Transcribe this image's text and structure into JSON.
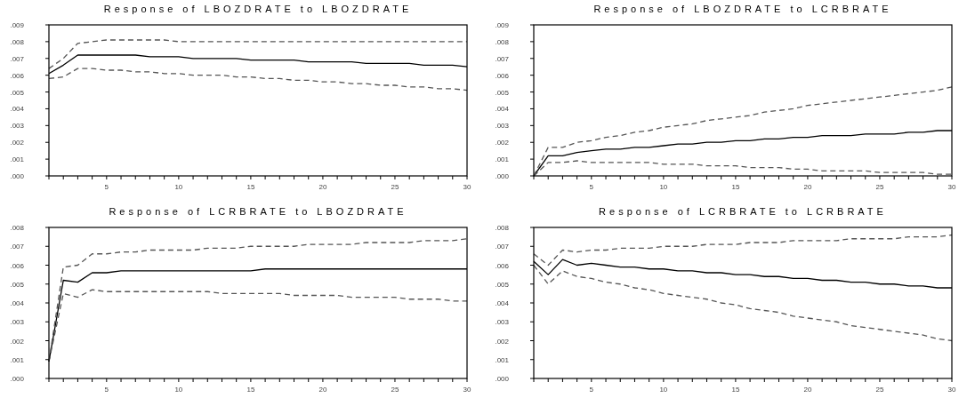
{
  "chart_data": [
    {
      "type": "line",
      "title": "Response of LBOZDRATE to LBOZDRATE",
      "x": [
        1,
        2,
        3,
        4,
        5,
        6,
        7,
        8,
        9,
        10,
        11,
        12,
        13,
        14,
        15,
        16,
        17,
        18,
        19,
        20,
        21,
        22,
        23,
        24,
        25,
        26,
        27,
        28,
        29,
        30
      ],
      "xlim": [
        1,
        30
      ],
      "xticks": [
        {
          "value": 1,
          "label": null
        },
        {
          "value": 2,
          "label": null
        },
        {
          "value": 3,
          "label": null
        },
        {
          "value": 4,
          "label": null
        },
        5,
        {
          "value": 6,
          "label": null
        },
        {
          "value": 7,
          "label": null
        },
        {
          "value": 8,
          "label": null
        },
        {
          "value": 9,
          "label": null
        },
        10,
        {
          "value": 11,
          "label": null
        },
        {
          "value": 12,
          "label": null
        },
        {
          "value": 13,
          "label": null
        },
        {
          "value": 14,
          "label": null
        },
        15,
        {
          "value": 16,
          "label": null
        },
        {
          "value": 17,
          "label": null
        },
        {
          "value": 18,
          "label": null
        },
        {
          "value": 19,
          "label": null
        },
        20,
        {
          "value": 21,
          "label": null
        },
        {
          "value": 22,
          "label": null
        },
        {
          "value": 23,
          "label": null
        },
        {
          "value": 24,
          "label": null
        },
        25,
        {
          "value": 26,
          "label": null
        },
        {
          "value": 27,
          "label": null
        },
        {
          "value": 28,
          "label": null
        },
        {
          "value": 29,
          "label": null
        },
        30
      ],
      "ylim": [
        0,
        0.009
      ],
      "yticks": [
        {
          "value": 0,
          "label": ".000"
        },
        {
          "value": 0.001,
          "label": ".001"
        },
        {
          "value": 0.002,
          "label": ".002"
        },
        {
          "value": 0.003,
          "label": ".003"
        },
        {
          "value": 0.004,
          "label": ".004"
        },
        {
          "value": 0.005,
          "label": ".005"
        },
        {
          "value": 0.006,
          "label": ".006"
        },
        {
          "value": 0.007,
          "label": ".007"
        },
        {
          "value": 0.008,
          "label": ".008"
        },
        {
          "value": 0.009,
          "label": ".009"
        }
      ],
      "series": [
        {
          "color": "#000000",
          "line_style": "solid",
          "values": [
            0.0061,
            0.0066,
            0.0072,
            0.0072,
            0.0072,
            0.0072,
            0.0072,
            0.0071,
            0.0071,
            0.0071,
            0.007,
            0.007,
            0.007,
            0.007,
            0.0069,
            0.0069,
            0.0069,
            0.0069,
            0.0068,
            0.0068,
            0.0068,
            0.0068,
            0.0067,
            0.0067,
            0.0067,
            0.0067,
            0.0066,
            0.0066,
            0.0066,
            0.0065
          ]
        },
        {
          "color": "#555555",
          "line_style": "dashed",
          "values": [
            0.0064,
            0.007,
            0.0079,
            0.008,
            0.0081,
            0.0081,
            0.0081,
            0.0081,
            0.0081,
            0.008,
            0.008,
            0.008,
            0.008,
            0.008,
            0.008,
            0.008,
            0.008,
            0.008,
            0.008,
            0.008,
            0.008,
            0.008,
            0.008,
            0.008,
            0.008,
            0.008,
            0.008,
            0.008,
            0.008,
            0.008
          ]
        },
        {
          "color": "#555555",
          "line_style": "dashed",
          "values": [
            0.0058,
            0.0059,
            0.0064,
            0.0064,
            0.0063,
            0.0063,
            0.0062,
            0.0062,
            0.0061,
            0.0061,
            0.006,
            0.006,
            0.006,
            0.0059,
            0.0059,
            0.0058,
            0.0058,
            0.0057,
            0.0057,
            0.0056,
            0.0056,
            0.0055,
            0.0055,
            0.0054,
            0.0054,
            0.0053,
            0.0053,
            0.0052,
            0.0052,
            0.0051
          ]
        }
      ]
    },
    {
      "type": "line",
      "title": "Response of LBOZDRATE to LCRBRATE",
      "x": [
        1,
        2,
        3,
        4,
        5,
        6,
        7,
        8,
        9,
        10,
        11,
        12,
        13,
        14,
        15,
        16,
        17,
        18,
        19,
        20,
        21,
        22,
        23,
        24,
        25,
        26,
        27,
        28,
        29,
        30
      ],
      "xlim": [
        1,
        30
      ],
      "xticks": [
        {
          "value": 1,
          "label": null
        },
        {
          "value": 2,
          "label": null
        },
        {
          "value": 3,
          "label": null
        },
        {
          "value": 4,
          "label": null
        },
        5,
        {
          "value": 6,
          "label": null
        },
        {
          "value": 7,
          "label": null
        },
        {
          "value": 8,
          "label": null
        },
        {
          "value": 9,
          "label": null
        },
        10,
        {
          "value": 11,
          "label": null
        },
        {
          "value": 12,
          "label": null
        },
        {
          "value": 13,
          "label": null
        },
        {
          "value": 14,
          "label": null
        },
        15,
        {
          "value": 16,
          "label": null
        },
        {
          "value": 17,
          "label": null
        },
        {
          "value": 18,
          "label": null
        },
        {
          "value": 19,
          "label": null
        },
        20,
        {
          "value": 21,
          "label": null
        },
        {
          "value": 22,
          "label": null
        },
        {
          "value": 23,
          "label": null
        },
        {
          "value": 24,
          "label": null
        },
        25,
        {
          "value": 26,
          "label": null
        },
        {
          "value": 27,
          "label": null
        },
        {
          "value": 28,
          "label": null
        },
        {
          "value": 29,
          "label": null
        },
        30
      ],
      "ylim": [
        0,
        0.009
      ],
      "yticks": [
        {
          "value": 0,
          "label": ".000"
        },
        {
          "value": 0.001,
          "label": ".001"
        },
        {
          "value": 0.002,
          "label": ".002"
        },
        {
          "value": 0.003,
          "label": ".003"
        },
        {
          "value": 0.004,
          "label": ".004"
        },
        {
          "value": 0.005,
          "label": ".005"
        },
        {
          "value": 0.006,
          "label": ".006"
        },
        {
          "value": 0.007,
          "label": ".007"
        },
        {
          "value": 0.008,
          "label": ".008"
        },
        {
          "value": 0.009,
          "label": ".009"
        }
      ],
      "series": [
        {
          "color": "#000000",
          "line_style": "solid",
          "values": [
            0,
            0.0012,
            0.0012,
            0.0014,
            0.0015,
            0.0016,
            0.0016,
            0.0017,
            0.0017,
            0.0018,
            0.0019,
            0.0019,
            0.002,
            0.002,
            0.0021,
            0.0021,
            0.0022,
            0.0022,
            0.0023,
            0.0023,
            0.0024,
            0.0024,
            0.0024,
            0.0025,
            0.0025,
            0.0025,
            0.0026,
            0.0026,
            0.0027,
            0.0027
          ]
        },
        {
          "color": "#555555",
          "line_style": "dashed",
          "values": [
            0,
            0.0017,
            0.0017,
            0.002,
            0.0021,
            0.0023,
            0.0024,
            0.0026,
            0.0027,
            0.0029,
            0.003,
            0.0031,
            0.0033,
            0.0034,
            0.0035,
            0.0036,
            0.0038,
            0.0039,
            0.004,
            0.0042,
            0.0043,
            0.0044,
            0.0045,
            0.0046,
            0.0047,
            0.0048,
            0.0049,
            0.005,
            0.0051,
            0.0053
          ]
        },
        {
          "color": "#555555",
          "line_style": "dashed",
          "values": [
            0,
            0.0008,
            0.0008,
            0.0009,
            0.0008,
            0.0008,
            0.0008,
            0.0008,
            0.0008,
            0.0007,
            0.0007,
            0.0007,
            0.0006,
            0.0006,
            0.0006,
            0.0005,
            0.0005,
            0.0005,
            0.0004,
            0.0004,
            0.0003,
            0.0003,
            0.0003,
            0.0003,
            0.0002,
            0.0002,
            0.0002,
            0.0002,
            0.0001,
            0.0001
          ]
        }
      ]
    },
    {
      "type": "line",
      "title": "Response of LCRBRATE to LBOZDRATE",
      "x": [
        1,
        2,
        3,
        4,
        5,
        6,
        7,
        8,
        9,
        10,
        11,
        12,
        13,
        14,
        15,
        16,
        17,
        18,
        19,
        20,
        21,
        22,
        23,
        24,
        25,
        26,
        27,
        28,
        29,
        30
      ],
      "xlim": [
        1,
        30
      ],
      "xticks": [
        {
          "value": 1,
          "label": null
        },
        {
          "value": 2,
          "label": null
        },
        {
          "value": 3,
          "label": null
        },
        {
          "value": 4,
          "label": null
        },
        5,
        {
          "value": 6,
          "label": null
        },
        {
          "value": 7,
          "label": null
        },
        {
          "value": 8,
          "label": null
        },
        {
          "value": 9,
          "label": null
        },
        10,
        {
          "value": 11,
          "label": null
        },
        {
          "value": 12,
          "label": null
        },
        {
          "value": 13,
          "label": null
        },
        {
          "value": 14,
          "label": null
        },
        15,
        {
          "value": 16,
          "label": null
        },
        {
          "value": 17,
          "label": null
        },
        {
          "value": 18,
          "label": null
        },
        {
          "value": 19,
          "label": null
        },
        20,
        {
          "value": 21,
          "label": null
        },
        {
          "value": 22,
          "label": null
        },
        {
          "value": 23,
          "label": null
        },
        {
          "value": 24,
          "label": null
        },
        25,
        {
          "value": 26,
          "label": null
        },
        {
          "value": 27,
          "label": null
        },
        {
          "value": 28,
          "label": null
        },
        {
          "value": 29,
          "label": null
        },
        30
      ],
      "ylim": [
        0,
        0.008
      ],
      "yticks": [
        {
          "value": 0,
          "label": ".000"
        },
        {
          "value": 0.001,
          "label": ".001"
        },
        {
          "value": 0.002,
          "label": ".002"
        },
        {
          "value": 0.003,
          "label": ".003"
        },
        {
          "value": 0.004,
          "label": ".004"
        },
        {
          "value": 0.005,
          "label": ".005"
        },
        {
          "value": 0.006,
          "label": ".006"
        },
        {
          "value": 0.007,
          "label": ".007"
        },
        {
          "value": 0.008,
          "label": ".008"
        }
      ],
      "series": [
        {
          "color": "#000000",
          "line_style": "solid",
          "values": [
            0.0009,
            0.0052,
            0.0051,
            0.0056,
            0.0056,
            0.0057,
            0.0057,
            0.0057,
            0.0057,
            0.0057,
            0.0057,
            0.0057,
            0.0057,
            0.0057,
            0.0057,
            0.0058,
            0.0058,
            0.0058,
            0.0058,
            0.0058,
            0.0058,
            0.0058,
            0.0058,
            0.0058,
            0.0058,
            0.0058,
            0.0058,
            0.0058,
            0.0058,
            0.0058
          ]
        },
        {
          "color": "#555555",
          "line_style": "dashed",
          "values": [
            0.0009,
            0.0059,
            0.006,
            0.0066,
            0.0066,
            0.0067,
            0.0067,
            0.0068,
            0.0068,
            0.0068,
            0.0068,
            0.0069,
            0.0069,
            0.0069,
            0.007,
            0.007,
            0.007,
            0.007,
            0.0071,
            0.0071,
            0.0071,
            0.0071,
            0.0072,
            0.0072,
            0.0072,
            0.0072,
            0.0073,
            0.0073,
            0.0073,
            0.0074
          ]
        },
        {
          "color": "#555555",
          "line_style": "dashed",
          "values": [
            0.0009,
            0.0045,
            0.0043,
            0.0047,
            0.0046,
            0.0046,
            0.0046,
            0.0046,
            0.0046,
            0.0046,
            0.0046,
            0.0046,
            0.0045,
            0.0045,
            0.0045,
            0.0045,
            0.0045,
            0.0044,
            0.0044,
            0.0044,
            0.0044,
            0.0043,
            0.0043,
            0.0043,
            0.0043,
            0.0042,
            0.0042,
            0.0042,
            0.0041,
            0.0041
          ]
        }
      ]
    },
    {
      "type": "line",
      "title": "Response of LCRBRATE to LCRBRATE",
      "x": [
        1,
        2,
        3,
        4,
        5,
        6,
        7,
        8,
        9,
        10,
        11,
        12,
        13,
        14,
        15,
        16,
        17,
        18,
        19,
        20,
        21,
        22,
        23,
        24,
        25,
        26,
        27,
        28,
        29,
        30
      ],
      "xlim": [
        1,
        30
      ],
      "xticks": [
        {
          "value": 1,
          "label": null
        },
        {
          "value": 2,
          "label": null
        },
        {
          "value": 3,
          "label": null
        },
        {
          "value": 4,
          "label": null
        },
        5,
        {
          "value": 6,
          "label": null
        },
        {
          "value": 7,
          "label": null
        },
        {
          "value": 8,
          "label": null
        },
        {
          "value": 9,
          "label": null
        },
        10,
        {
          "value": 11,
          "label": null
        },
        {
          "value": 12,
          "label": null
        },
        {
          "value": 13,
          "label": null
        },
        {
          "value": 14,
          "label": null
        },
        15,
        {
          "value": 16,
          "label": null
        },
        {
          "value": 17,
          "label": null
        },
        {
          "value": 18,
          "label": null
        },
        {
          "value": 19,
          "label": null
        },
        20,
        {
          "value": 21,
          "label": null
        },
        {
          "value": 22,
          "label": null
        },
        {
          "value": 23,
          "label": null
        },
        {
          "value": 24,
          "label": null
        },
        25,
        {
          "value": 26,
          "label": null
        },
        {
          "value": 27,
          "label": null
        },
        {
          "value": 28,
          "label": null
        },
        {
          "value": 29,
          "label": null
        },
        30
      ],
      "ylim": [
        0,
        0.008
      ],
      "yticks": [
        {
          "value": 0,
          "label": ".000"
        },
        {
          "value": 0.001,
          "label": ".001"
        },
        {
          "value": 0.002,
          "label": ".002"
        },
        {
          "value": 0.003,
          "label": ".003"
        },
        {
          "value": 0.004,
          "label": ".004"
        },
        {
          "value": 0.005,
          "label": ".005"
        },
        {
          "value": 0.006,
          "label": ".006"
        },
        {
          "value": 0.007,
          "label": ".007"
        },
        {
          "value": 0.008,
          "label": ".008"
        }
      ],
      "series": [
        {
          "color": "#000000",
          "line_style": "solid",
          "values": [
            0.0062,
            0.0055,
            0.0063,
            0.006,
            0.0061,
            0.006,
            0.0059,
            0.0059,
            0.0058,
            0.0058,
            0.0057,
            0.0057,
            0.0056,
            0.0056,
            0.0055,
            0.0055,
            0.0054,
            0.0054,
            0.0053,
            0.0053,
            0.0052,
            0.0052,
            0.0051,
            0.0051,
            0.005,
            0.005,
            0.0049,
            0.0049,
            0.0048,
            0.0048
          ]
        },
        {
          "color": "#555555",
          "line_style": "dashed",
          "values": [
            0.0066,
            0.006,
            0.0068,
            0.0067,
            0.0068,
            0.0068,
            0.0069,
            0.0069,
            0.0069,
            0.007,
            0.007,
            0.007,
            0.0071,
            0.0071,
            0.0071,
            0.0072,
            0.0072,
            0.0072,
            0.0073,
            0.0073,
            0.0073,
            0.0073,
            0.0074,
            0.0074,
            0.0074,
            0.0074,
            0.0075,
            0.0075,
            0.0075,
            0.0076
          ]
        },
        {
          "color": "#555555",
          "line_style": "dashed",
          "values": [
            0.006,
            0.005,
            0.0057,
            0.0054,
            0.0053,
            0.0051,
            0.005,
            0.0048,
            0.0047,
            0.0045,
            0.0044,
            0.0043,
            0.0042,
            0.004,
            0.0039,
            0.0037,
            0.0036,
            0.0035,
            0.0033,
            0.0032,
            0.0031,
            0.003,
            0.0028,
            0.0027,
            0.0026,
            0.0025,
            0.0024,
            0.0023,
            0.0021,
            0.002
          ]
        }
      ]
    }
  ]
}
